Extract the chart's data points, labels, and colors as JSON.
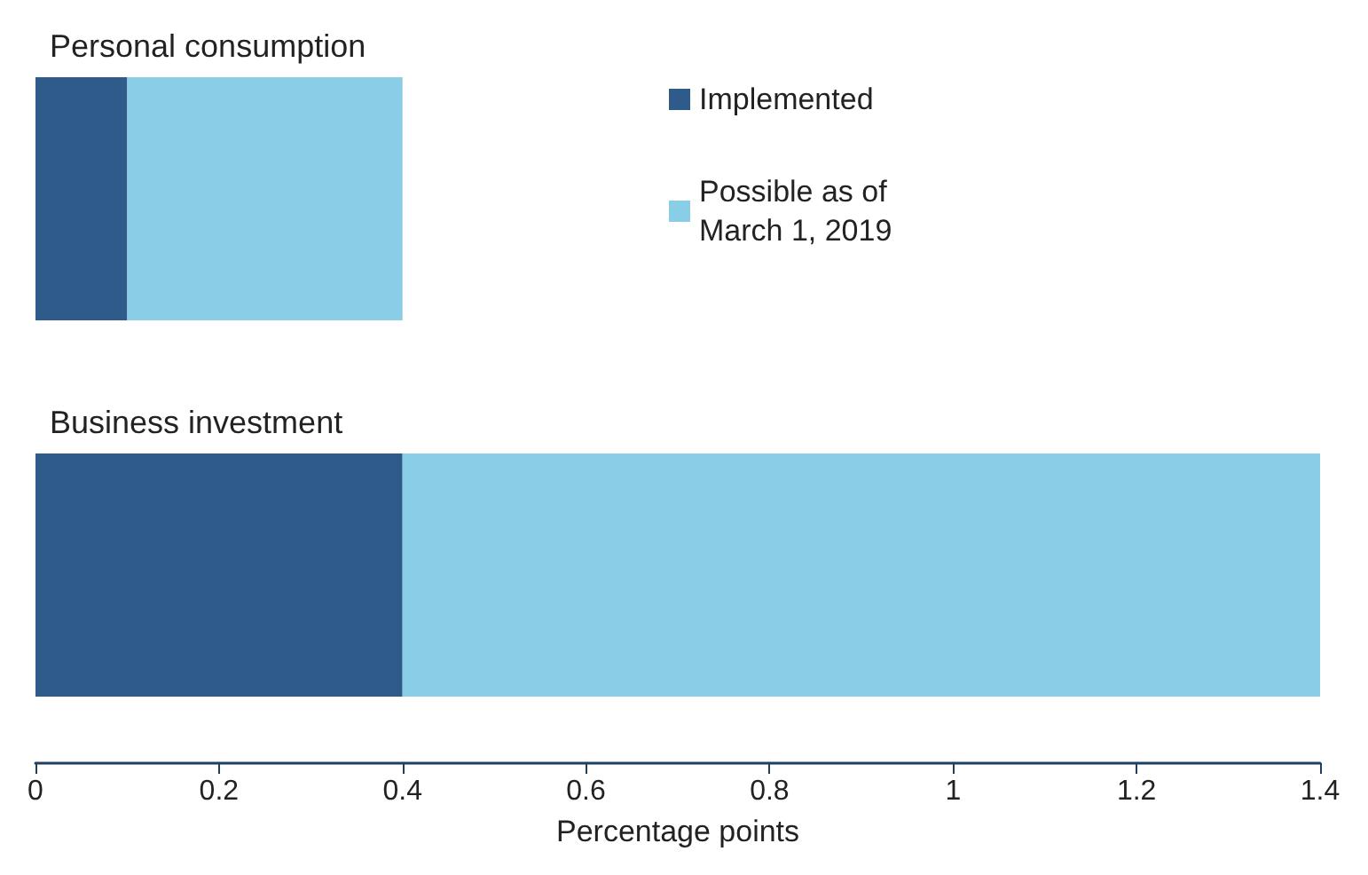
{
  "chart_data": {
    "type": "bar",
    "orientation": "horizontal",
    "stacked": true,
    "categories": [
      "Personal consumption",
      "Business investment"
    ],
    "series": [
      {
        "name": "Implemented",
        "color": "#2e5b89",
        "values": [
          0.1,
          0.4
        ]
      },
      {
        "name": "Possible as of March 1, 2019",
        "color": "#89cde6",
        "values": [
          0.3,
          1.0
        ]
      }
    ],
    "xlabel": "Percentage points",
    "xlim": [
      0,
      1.4
    ],
    "xticks": [
      0,
      0.2,
      0.4,
      0.6,
      0.8,
      1,
      1.2,
      1.4
    ],
    "legend": "top right",
    "grid": false
  }
}
